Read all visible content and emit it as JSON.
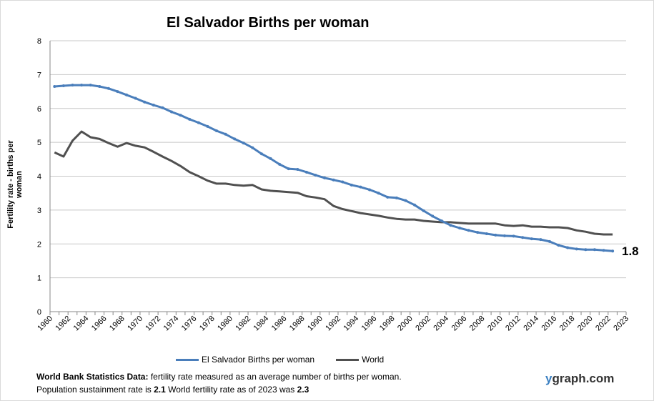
{
  "chart_data": {
    "type": "line",
    "title": "El Salvador Births per woman",
    "ylabel": "Fertility rate  - births per woman",
    "xlabel": "",
    "ylim": [
      0,
      8
    ],
    "yticks": [
      0,
      1,
      2,
      3,
      4,
      5,
      6,
      7,
      8
    ],
    "xticks": [
      "1960",
      "1962",
      "1964",
      "1966",
      "1968",
      "1970",
      "1972",
      "1974",
      "1976",
      "1978",
      "1980",
      "1982",
      "1984",
      "1986",
      "1988",
      "1990",
      "1992",
      "1994",
      "1996",
      "1998",
      "2000",
      "2002",
      "2004",
      "2006",
      "2008",
      "2010",
      "2012",
      "2014",
      "2016",
      "2018",
      "2020",
      "2022",
      "2023"
    ],
    "x_start": 1960,
    "x_end": 2023,
    "grid": true,
    "legend": "bottom",
    "end_label": "1.8",
    "series": [
      {
        "name": "El Salvador Births per woman",
        "color": "#4a7ebb",
        "markers": true,
        "values": [
          6.65,
          6.67,
          6.69,
          6.69,
          6.69,
          6.65,
          6.59,
          6.5,
          6.4,
          6.3,
          6.19,
          6.1,
          6.02,
          5.9,
          5.8,
          5.68,
          5.58,
          5.47,
          5.34,
          5.24,
          5.1,
          4.98,
          4.84,
          4.66,
          4.52,
          4.35,
          4.22,
          4.2,
          4.12,
          4.03,
          3.95,
          3.89,
          3.83,
          3.74,
          3.68,
          3.6,
          3.5,
          3.38,
          3.36,
          3.28,
          3.15,
          2.98,
          2.82,
          2.68,
          2.55,
          2.47,
          2.4,
          2.34,
          2.3,
          2.26,
          2.24,
          2.23,
          2.19,
          2.15,
          2.13,
          2.07,
          1.96,
          1.89,
          1.85,
          1.83,
          1.83,
          1.81,
          1.79
        ]
      },
      {
        "name": "World",
        "color": "#505050",
        "markers": false,
        "values": [
          4.7,
          4.58,
          5.05,
          5.32,
          5.15,
          5.1,
          4.98,
          4.87,
          4.98,
          4.9,
          4.85,
          4.72,
          4.58,
          4.45,
          4.3,
          4.12,
          4.0,
          3.87,
          3.78,
          3.78,
          3.74,
          3.72,
          3.74,
          3.61,
          3.57,
          3.55,
          3.53,
          3.51,
          3.41,
          3.37,
          3.32,
          3.12,
          3.03,
          2.97,
          2.91,
          2.87,
          2.83,
          2.78,
          2.74,
          2.72,
          2.72,
          2.68,
          2.66,
          2.64,
          2.64,
          2.62,
          2.6,
          2.6,
          2.6,
          2.6,
          2.55,
          2.53,
          2.55,
          2.51,
          2.51,
          2.49,
          2.49,
          2.47,
          2.4,
          2.36,
          2.3,
          2.28,
          2.28
        ]
      }
    ]
  },
  "footer": {
    "source_bold": "World Bank Statistics Data:",
    "source_text": " fertility rate measured as an average number  of births per woman.",
    "line2_a": "Population sustainment rate is ",
    "line2_b": "2.1",
    "line2_c": "   World fertility rate as of 2023 was ",
    "line2_d": "2.3",
    "brand_y": "y",
    "brand_rest": "graph.com"
  }
}
